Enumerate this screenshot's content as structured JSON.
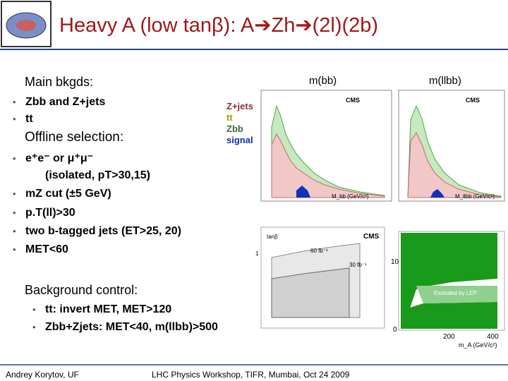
{
  "header": {
    "title": "Heavy A (low tanβ): A➔Zh➔(2l)(2b)"
  },
  "left": {
    "main_heading": "Main bkgds:",
    "main_items": [
      "Zbb and Z+jets",
      "tt"
    ],
    "selection_heading": "Offline selection:",
    "selection_items": [
      "e⁺e⁻ or μ⁺μ⁻",
      "(isolated, pT>30,15)",
      "mZ cut (±5 GeV)",
      "p.T(ll)>30",
      "two b-tagged jets (ET>25, 20)",
      "MET<60"
    ],
    "control_heading": "Background control:",
    "control_items": [
      "tt: invert MET, MET>120",
      "Zbb+Zjets: MET<40, m(llbb)>500"
    ]
  },
  "legend": [
    "Z+jets",
    "tt",
    "Zbb",
    "signal"
  ],
  "plots": {
    "mbb_label": "m(bb)",
    "mllbb_label": "m(llbb)",
    "cms": "CMS",
    "mbb_axis": "M_bb (GeV/c²)",
    "mllbb_axis": "M_llbb (GeV/c²)",
    "lumi_60": "60 fb⁻¹",
    "lumi_30": "30 fb⁻¹",
    "tanb": "tanβ",
    "excluded": "Excluded by LEP",
    "ma_axis": "m_A (GeV/c²)",
    "tick_10": "10",
    "tick_1": "1",
    "tick_0": "0",
    "tick_200": "200",
    "tick_400": "400"
  },
  "footer": {
    "author": "Andrey Korytov, UF",
    "event": "LHC Physics Workshop, TIFR, Mumbai, Oct 24 2009"
  }
}
